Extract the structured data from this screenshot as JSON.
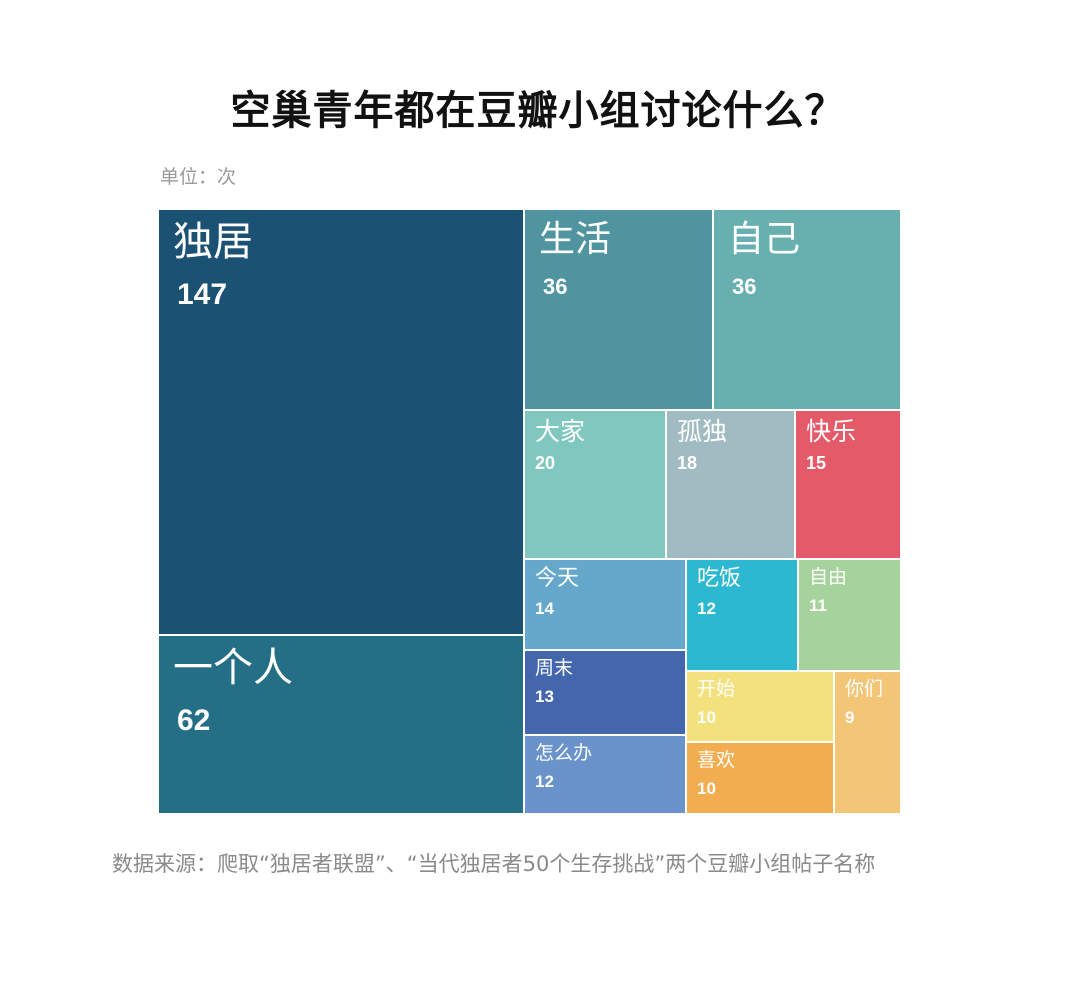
{
  "title": "空巢青年都在豆瓣小组讨论什么？",
  "unit": "单位：次",
  "source": "数据来源：爬取“独居者联盟”、“当代独居者50个生存挑战”两个豆瓣小组帖子名称",
  "chart_data": {
    "type": "treemap",
    "title": "空巢青年都在豆瓣小组讨论什么？",
    "unit": "次",
    "items": [
      {
        "label": "独居",
        "value": 147,
        "color": "#1b5172"
      },
      {
        "label": "一个人",
        "value": 62,
        "color": "#246e86"
      },
      {
        "label": "生活",
        "value": 36,
        "color": "#4f949e"
      },
      {
        "label": "自己",
        "value": 36,
        "color": "#68b0b0"
      },
      {
        "label": "大家",
        "value": 20,
        "color": "#80c7bf"
      },
      {
        "label": "孤独",
        "value": 18,
        "color": "#a0bcc2"
      },
      {
        "label": "快乐",
        "value": 15,
        "color": "#e55a69"
      },
      {
        "label": "今天",
        "value": 14,
        "color": "#66a8cc"
      },
      {
        "label": "吃饭",
        "value": 12,
        "color": "#2db8d1"
      },
      {
        "label": "自由",
        "value": 11,
        "color": "#a6d39b"
      },
      {
        "label": "周末",
        "value": 13,
        "color": "#4466ad"
      },
      {
        "label": "开始",
        "value": 10,
        "color": "#f3e17d"
      },
      {
        "label": "你们",
        "value": 9,
        "color": "#f2c577"
      },
      {
        "label": "怎么办",
        "value": 12,
        "color": "#6a93cc"
      },
      {
        "label": "喜欢",
        "value": 10,
        "color": "#f2ad50"
      }
    ]
  }
}
